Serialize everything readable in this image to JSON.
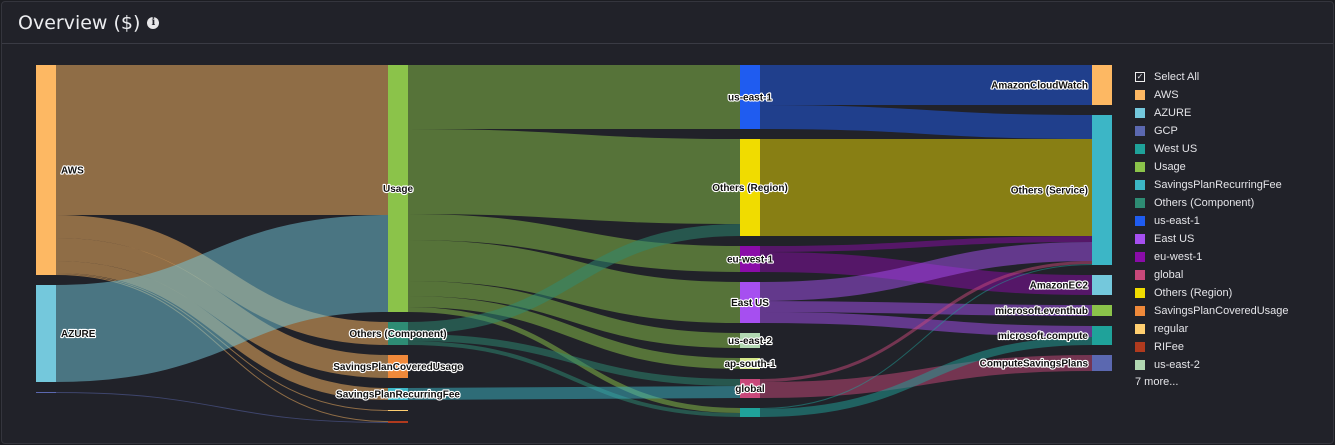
{
  "header": {
    "title": "Overview ($)",
    "info_icon": "info-icon"
  },
  "legend": {
    "select_all": "Select All",
    "items": [
      {
        "label": "AWS",
        "color": "#fdb863"
      },
      {
        "label": "AZURE",
        "color": "#74c8dc"
      },
      {
        "label": "GCP",
        "color": "#5b68b0"
      },
      {
        "label": "West US",
        "color": "#1fa29a"
      },
      {
        "label": "Usage",
        "color": "#8bc34a"
      },
      {
        "label": "SavingsPlanRecurringFee",
        "color": "#3cb6c6"
      },
      {
        "label": "Others (Component)",
        "color": "#2e8c74"
      },
      {
        "label": "us-east-1",
        "color": "#1f5cf0"
      },
      {
        "label": "East US",
        "color": "#a64ff0"
      },
      {
        "label": "eu-west-1",
        "color": "#8a0ca8"
      },
      {
        "label": "global",
        "color": "#c8487a"
      },
      {
        "label": "Others (Region)",
        "color": "#f0dc00"
      },
      {
        "label": "SavingsPlanCoveredUsage",
        "color": "#f0893a"
      },
      {
        "label": "regular",
        "color": "#ffcf70"
      },
      {
        "label": "RIFee",
        "color": "#b03a1e"
      },
      {
        "label": "us-east-2",
        "color": "#b2d8b2"
      }
    ],
    "more": "7 more..."
  },
  "chart_data": {
    "type": "sankey",
    "nodes": [
      {
        "id": "AWS",
        "col": 0,
        "color": "#fdb863",
        "label": "AWS"
      },
      {
        "id": "AZURE",
        "col": 0,
        "color": "#74c8dc",
        "label": "AZURE"
      },
      {
        "id": "GCP",
        "col": 0,
        "color": "#5b68b0",
        "label": ""
      },
      {
        "id": "Usage",
        "col": 1,
        "color": "#8bc34a",
        "label": "Usage"
      },
      {
        "id": "Others (Component)",
        "col": 1,
        "color": "#2e8c74",
        "label": "Others (Component)"
      },
      {
        "id": "SavingsPlanCoveredUsage",
        "col": 1,
        "color": "#f0893a",
        "label": "SavingsPlanCoveredUsage"
      },
      {
        "id": "SavingsPlanRecurringFee",
        "col": 1,
        "color": "#3cb6c6",
        "label": "SavingsPlanRecurringFee"
      },
      {
        "id": "regular",
        "col": 1,
        "color": "#ffcf70",
        "label": ""
      },
      {
        "id": "RIFee",
        "col": 1,
        "color": "#b03a1e",
        "label": ""
      },
      {
        "id": "us-east-1",
        "col": 2,
        "color": "#1f5cf0",
        "label": "us-east-1"
      },
      {
        "id": "Others (Region)",
        "col": 2,
        "color": "#f0dc00",
        "label": "Others (Region)"
      },
      {
        "id": "eu-west-1",
        "col": 2,
        "color": "#8a0ca8",
        "label": "eu-west-1"
      },
      {
        "id": "East US",
        "col": 2,
        "color": "#a64ff0",
        "label": "East US"
      },
      {
        "id": "us-east-2",
        "col": 2,
        "color": "#b2d8b2",
        "label": "us-east-2"
      },
      {
        "id": "ap-south-1",
        "col": 2,
        "color": "#d4e88a",
        "label": "ap-south-1"
      },
      {
        "id": "global",
        "col": 2,
        "color": "#c8487a",
        "label": "global"
      },
      {
        "id": "West US",
        "col": 2,
        "color": "#1fa29a",
        "label": ""
      },
      {
        "id": "AmazonCloudWatch",
        "col": 3,
        "color": "#fdb863",
        "label": "AmazonCloudWatch"
      },
      {
        "id": "Others (Service)",
        "col": 3,
        "color": "#3cb6c6",
        "label": "Others (Service)"
      },
      {
        "id": "AmazonEC2",
        "col": 3,
        "color": "#74c8dc",
        "label": "AmazonEC2"
      },
      {
        "id": "microsoft.eventhub",
        "col": 3,
        "color": "#8bc34a",
        "label": "microsoft.eventhub"
      },
      {
        "id": "microsoft.compute",
        "col": 3,
        "color": "#1fa29a",
        "label": "microsoft.compute"
      },
      {
        "id": "ComputeSavingsPlans",
        "col": 3,
        "color": "#5b68b0",
        "label": "ComputeSavingsPlans"
      }
    ],
    "links": [
      {
        "source": "AWS",
        "target": "Usage",
        "value": 150
      },
      {
        "source": "AWS",
        "target": "Others (Component)",
        "value": 23
      },
      {
        "source": "AWS",
        "target": "SavingsPlanCoveredUsage",
        "value": 23
      },
      {
        "source": "AWS",
        "target": "SavingsPlanRecurringFee",
        "value": 12
      },
      {
        "source": "AWS",
        "target": "regular",
        "value": 1
      },
      {
        "source": "AWS",
        "target": "RIFee",
        "value": 1
      },
      {
        "source": "AZURE",
        "target": "Usage",
        "value": 97
      },
      {
        "source": "GCP",
        "target": "RIFee",
        "value": 1
      },
      {
        "source": "Usage",
        "target": "us-east-1",
        "value": 64
      },
      {
        "source": "Usage",
        "target": "Others (Region)",
        "value": 85
      },
      {
        "source": "Usage",
        "target": "eu-west-1",
        "value": 26
      },
      {
        "source": "Usage",
        "target": "East US",
        "value": 41
      },
      {
        "source": "Usage",
        "target": "us-east-2",
        "value": 15
      },
      {
        "source": "Usage",
        "target": "ap-south-1",
        "value": 11
      },
      {
        "source": "Usage",
        "target": "West US",
        "value": 5
      },
      {
        "source": "Others (Component)",
        "target": "Others (Region)",
        "value": 12
      },
      {
        "source": "Others (Component)",
        "target": "global",
        "value": 7
      },
      {
        "source": "Others (Component)",
        "target": "West US",
        "value": 4
      },
      {
        "source": "SavingsPlanRecurringFee",
        "target": "global",
        "value": 12
      },
      {
        "source": "us-east-1",
        "target": "AmazonCloudWatch",
        "value": 40
      },
      {
        "source": "us-east-1",
        "target": "Others (Service)",
        "value": 24
      },
      {
        "source": "Others (Region)",
        "target": "Others (Service)",
        "value": 97
      },
      {
        "source": "eu-west-1",
        "target": "Others (Service)",
        "value": 6
      },
      {
        "source": "eu-west-1",
        "target": "AmazonEC2",
        "value": 20
      },
      {
        "source": "East US",
        "target": "Others (Service)",
        "value": 19
      },
      {
        "source": "East US",
        "target": "microsoft.eventhub",
        "value": 11
      },
      {
        "source": "East US",
        "target": "microsoft.compute",
        "value": 11
      },
      {
        "source": "global",
        "target": "Others (Service)",
        "value": 3
      },
      {
        "source": "global",
        "target": "ComputeSavingsPlans",
        "value": 16
      },
      {
        "source": "West US",
        "target": "Others (Service)",
        "value": 1
      },
      {
        "source": "West US",
        "target": "microsoft.compute",
        "value": 8
      }
    ]
  }
}
